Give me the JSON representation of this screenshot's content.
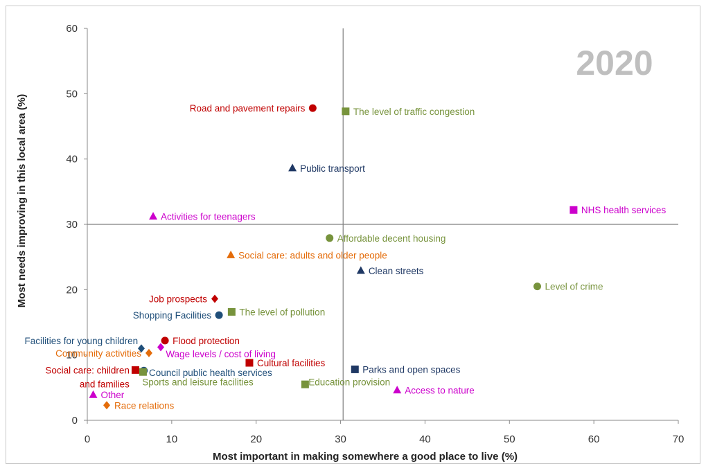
{
  "chart_data": {
    "type": "scatter",
    "annotation": "2020",
    "xlabel": "Most important in making somewhere a good place to live (%)",
    "ylabel": "Most needs improving in this local area (%)",
    "xlim": [
      0,
      70
    ],
    "ylim": [
      0,
      60
    ],
    "x_ticks": [
      0,
      10,
      20,
      30,
      40,
      50,
      60,
      70
    ],
    "y_ticks": [
      0,
      10,
      20,
      30,
      40,
      50,
      60
    ],
    "reference_lines": {
      "x": 30.3,
      "y": 30
    },
    "grid": false,
    "points": [
      {
        "label": "Road and pavement repairs",
        "lines": [
          "Road and pavement repairs"
        ],
        "x": 26.7,
        "y": 47.8,
        "marker": "circle",
        "color": "#c00000",
        "label_side": "left"
      },
      {
        "label": "The level of traffic congestion",
        "lines": [
          "The level of traffic congestion"
        ],
        "x": 30.6,
        "y": 47.3,
        "marker": "square",
        "color": "#77933c",
        "label_side": "right"
      },
      {
        "label": "Public transport",
        "lines": [
          "Public  transport"
        ],
        "x": 24.3,
        "y": 38.6,
        "marker": "triangle",
        "color": "#1f3864",
        "label_side": "right"
      },
      {
        "label": "Activities for teenagers",
        "lines": [
          "Activities for teenagers"
        ],
        "x": 7.8,
        "y": 31.2,
        "marker": "triangle",
        "color": "#cc00cc",
        "label_side": "right"
      },
      {
        "label": "NHS health services",
        "lines": [
          "NHS health services"
        ],
        "x": 57.6,
        "y": 32.2,
        "marker": "square",
        "color": "#cc00cc",
        "label_side": "right"
      },
      {
        "label": "Affordable decent housing",
        "lines": [
          "Affordable decent housing"
        ],
        "x": 28.7,
        "y": 27.9,
        "marker": "circle",
        "color": "#77933c",
        "label_side": "right"
      },
      {
        "label": "Social care: adults and older people",
        "lines": [
          "Social care: adults and older people"
        ],
        "x": 17.0,
        "y": 25.3,
        "marker": "triangle",
        "color": "#e46c0a",
        "label_side": "right"
      },
      {
        "label": "Clean streets",
        "lines": [
          "Clean streets"
        ],
        "x": 32.4,
        "y": 22.9,
        "marker": "triangle",
        "color": "#1f3864",
        "label_side": "right"
      },
      {
        "label": "Level of crime",
        "lines": [
          "Level of crime"
        ],
        "x": 53.3,
        "y": 20.5,
        "marker": "circle",
        "color": "#77933c",
        "label_side": "right"
      },
      {
        "label": "Job prospects",
        "lines": [
          "Job prospects"
        ],
        "x": 15.1,
        "y": 18.6,
        "marker": "diamond",
        "color": "#c00000",
        "label_side": "left"
      },
      {
        "label": "The level of pollution",
        "lines": [
          "The level of pollution"
        ],
        "x": 17.1,
        "y": 16.6,
        "marker": "square",
        "color": "#77933c",
        "label_side": "right"
      },
      {
        "label": "Shopping Facilities",
        "lines": [
          "Shopping Facilities"
        ],
        "x": 15.6,
        "y": 16.1,
        "marker": "circle",
        "color": "#1f4e79",
        "label_side": "left"
      },
      {
        "label": "Facilities for young children",
        "lines": [
          "Facilities for young children"
        ],
        "x": 6.4,
        "y": 11.0,
        "marker": "diamond",
        "color": "#1f4e79",
        "label_side": "custom",
        "lx": 6.0,
        "ly": 12.2,
        "anchor": "end"
      },
      {
        "label": "Flood protection",
        "lines": [
          "Flood protection"
        ],
        "x": 9.2,
        "y": 12.2,
        "marker": "circle",
        "color": "#c00000",
        "label_side": "right"
      },
      {
        "label": "Wage levels / cost of living",
        "lines": [
          "Wage levels / cost of living"
        ],
        "x": 8.7,
        "y": 11.2,
        "marker": "diamond",
        "color": "#cc00cc",
        "label_side": "custom",
        "lx": 9.3,
        "ly": 10.2,
        "anchor": "start"
      },
      {
        "label": "Community activities",
        "lines": [
          "Community activities"
        ],
        "x": 7.3,
        "y": 10.3,
        "marker": "diamond",
        "color": "#e46c0a",
        "label_side": "left"
      },
      {
        "label": "Cultural facilities",
        "lines": [
          "Cultural facilities"
        ],
        "x": 19.2,
        "y": 8.8,
        "marker": "square",
        "color": "#c00000",
        "label_side": "right"
      },
      {
        "label": "Social care: children and families",
        "lines": [
          "Social care: children",
          "and families"
        ],
        "x": 5.7,
        "y": 7.7,
        "marker": "square",
        "color": "#c00000",
        "label_side": "custom",
        "lx": 5.0,
        "ly": 7.7,
        "anchor": "end"
      },
      {
        "label": "Council public health services",
        "lines": [
          "Council public health services"
        ],
        "x": 6.7,
        "y": 7.6,
        "marker": "circle",
        "color": "#1f4e79",
        "label_side": "custom",
        "lx": 7.3,
        "ly": 7.3,
        "anchor": "start"
      },
      {
        "label": "Sports and leisure facilities",
        "lines": [
          "Sports and leisure  facilities"
        ],
        "x": 6.6,
        "y": 7.4,
        "marker": "square",
        "color": "#77933c",
        "label_side": "custom",
        "lx": 6.5,
        "ly": 5.9,
        "anchor": "start"
      },
      {
        "label": "Parks and open spaces",
        "lines": [
          "Parks and open spaces"
        ],
        "x": 31.7,
        "y": 7.8,
        "marker": "square",
        "color": "#1f3864",
        "label_side": "right"
      },
      {
        "label": "Education provision",
        "lines": [
          "Education provision"
        ],
        "x": 25.8,
        "y": 5.5,
        "marker": "square",
        "color": "#77933c",
        "label_side": "custom",
        "lx": 26.2,
        "ly": 5.9,
        "anchor": "start"
      },
      {
        "label": "Access to nature",
        "lines": [
          "Access to nature"
        ],
        "x": 36.7,
        "y": 4.6,
        "marker": "triangle",
        "color": "#cc00cc",
        "label_side": "right"
      },
      {
        "label": "Other",
        "lines": [
          "Other"
        ],
        "x": 0.7,
        "y": 3.9,
        "marker": "triangle",
        "color": "#cc00cc",
        "label_side": "custom",
        "lx": 1.6,
        "ly": 3.9,
        "anchor": "start"
      },
      {
        "label": "Race relations",
        "lines": [
          "Race relations"
        ],
        "x": 2.3,
        "y": 2.3,
        "marker": "diamond",
        "color": "#e46c0a",
        "label_side": "right"
      }
    ]
  }
}
